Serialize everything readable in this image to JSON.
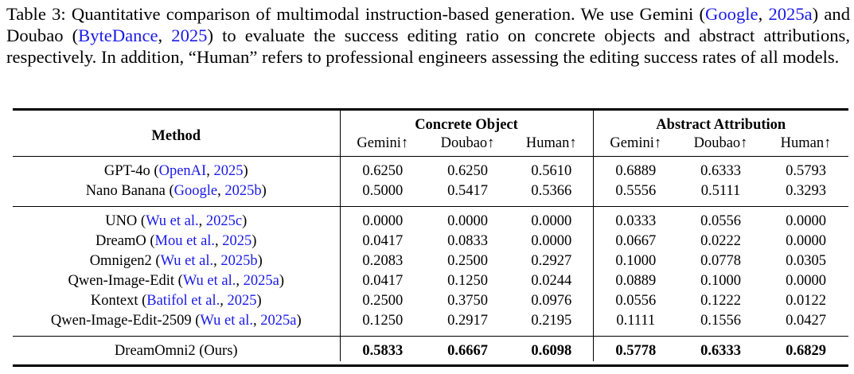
{
  "caption": {
    "label": "Table 3:",
    "text_1": "Quantitative comparison of multimodal instruction-based generation. We use Gemini (",
    "cite_1a": "Google",
    "sep_1": ", ",
    "cite_1b": "2025a",
    "text_2": ") and Doubao (",
    "cite_2a": "ByteDance",
    "sep_2": ", ",
    "cite_2b": "2025",
    "text_3": ") to evaluate the success editing ratio on concrete objects and abstract attributions, respectively. In addition, “Human” refers to professional engineers assessing the editing success rates of all models."
  },
  "table": {
    "method_header": "Method",
    "group_headers": [
      "Concrete Object",
      "Abstract Attribution"
    ],
    "sub_headers": [
      "Gemini↑",
      "Doubao↑",
      "Human↑",
      "Gemini↑",
      "Doubao↑",
      "Human↑"
    ],
    "group1": [
      {
        "name": "GPT-4o (",
        "cite_a": "OpenAI",
        "cite_sep": ", ",
        "cite_b": "2025",
        "close": ")",
        "values": [
          "0.6250",
          "0.6250",
          "0.5610",
          "0.6889",
          "0.6333",
          "0.5793"
        ]
      },
      {
        "name": "Nano Banana (",
        "cite_a": "Google",
        "cite_sep": ", ",
        "cite_b": "2025b",
        "close": ")",
        "values": [
          "0.5000",
          "0.5417",
          "0.5366",
          "0.5556",
          "0.5111",
          "0.3293"
        ]
      }
    ],
    "group2": [
      {
        "name": "UNO (",
        "cite_a": "Wu et al.",
        "cite_sep": ", ",
        "cite_b": "2025c",
        "close": ")",
        "values": [
          "0.0000",
          "0.0000",
          "0.0000",
          "0.0333",
          "0.0556",
          "0.0000"
        ]
      },
      {
        "name": "DreamO (",
        "cite_a": "Mou et al.",
        "cite_sep": ", ",
        "cite_b": "2025",
        "close": ")",
        "values": [
          "0.0417",
          "0.0833",
          "0.0000",
          "0.0667",
          "0.0222",
          "0.0000"
        ]
      },
      {
        "name": "Omnigen2 (",
        "cite_a": "Wu et al.",
        "cite_sep": ", ",
        "cite_b": "2025b",
        "close": ")",
        "values": [
          "0.2083",
          "0.2500",
          "0.2927",
          "0.1000",
          "0.0778",
          "0.0305"
        ]
      },
      {
        "name": "Qwen-Image-Edit (",
        "cite_a": "Wu et al.",
        "cite_sep": ", ",
        "cite_b": "2025a",
        "close": ")",
        "values": [
          "0.0417",
          "0.1250",
          "0.0244",
          "0.0889",
          "0.1000",
          "0.0000"
        ]
      },
      {
        "name": "Kontext (",
        "cite_a": "Batifol et al.",
        "cite_sep": ", ",
        "cite_b": "2025",
        "close": ")",
        "values": [
          "0.2500",
          "0.3750",
          "0.0976",
          "0.0556",
          "0.1222",
          "0.0122"
        ]
      },
      {
        "name": "Qwen-Image-Edit-2509 (",
        "cite_a": "Wu et al.",
        "cite_sep": ", ",
        "cite_b": "2025a",
        "close": ")",
        "values": [
          "0.1250",
          "0.2917",
          "0.2195",
          "0.1111",
          "0.1556",
          "0.0427"
        ]
      }
    ],
    "ours": {
      "name": "DreamOmni2 (Ours)",
      "values": [
        "0.5833",
        "0.6667",
        "0.6098",
        "0.5778",
        "0.6333",
        "0.6829"
      ]
    }
  },
  "colors": {
    "citation": "#1a1ae6",
    "text": "#000000"
  }
}
